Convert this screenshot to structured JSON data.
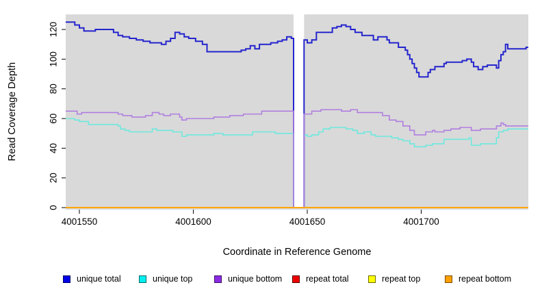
{
  "chart_data": {
    "type": "line",
    "subtype": "step-post",
    "title": "",
    "xlabel": "Coordinate in Reference Genome",
    "ylabel": "Read Coverage Depth",
    "xlim": [
      4001544,
      4001747
    ],
    "ylim": [
      0,
      130
    ],
    "x_ticks": [
      "4001550",
      "4001600",
      "4001650",
      "4001700"
    ],
    "x_tick_values": [
      4001550,
      4001600,
      4001650,
      4001700
    ],
    "y_ticks": [
      "0",
      "20",
      "40",
      "60",
      "80",
      "100",
      "120"
    ],
    "y_tick_values": [
      0,
      20,
      40,
      60,
      80,
      100,
      120
    ],
    "grid": false,
    "panel_background": "#d9d9d9",
    "outer_background": "#ffffff",
    "no_data_gap": {
      "x_start": 4001644,
      "x_end": 4001648.6,
      "fill": "#ffffff"
    },
    "legend_position": "bottom",
    "series": [
      {
        "name": "unique total",
        "line_color": "#2424ce",
        "swatch_fill": "#0000e8",
        "swatch_border": "#000066",
        "line_width": 2,
        "points": [
          [
            4001544,
            125
          ],
          [
            4001548,
            123
          ],
          [
            4001550,
            121
          ],
          [
            4001552,
            119
          ],
          [
            4001557,
            120
          ],
          [
            4001565,
            118
          ],
          [
            4001567,
            116
          ],
          [
            4001569,
            115
          ],
          [
            4001572,
            114
          ],
          [
            4001575,
            113
          ],
          [
            4001578,
            112
          ],
          [
            4001581,
            111
          ],
          [
            4001586,
            110
          ],
          [
            4001588,
            112
          ],
          [
            4001590,
            114
          ],
          [
            4001592,
            118
          ],
          [
            4001594,
            117
          ],
          [
            4001596,
            115
          ],
          [
            4001598,
            114
          ],
          [
            4001601,
            112
          ],
          [
            4001604,
            110
          ],
          [
            4001606,
            105
          ],
          [
            4001621,
            106
          ],
          [
            4001623,
            107
          ],
          [
            4001625,
            109
          ],
          [
            4001627,
            107
          ],
          [
            4001629,
            110
          ],
          [
            4001634,
            111
          ],
          [
            4001637,
            112
          ],
          [
            4001639,
            113
          ],
          [
            4001641,
            115
          ],
          [
            4001643,
            114
          ],
          [
            4001644,
            0
          ],
          [
            4001648.6,
            113
          ],
          [
            4001650,
            111
          ],
          [
            4001652,
            113
          ],
          [
            4001654,
            118
          ],
          [
            4001661,
            121
          ],
          [
            4001663,
            122
          ],
          [
            4001665,
            123
          ],
          [
            4001667,
            122
          ],
          [
            4001669,
            120
          ],
          [
            4001671,
            118
          ],
          [
            4001674,
            116
          ],
          [
            4001679,
            113
          ],
          [
            4001681,
            115
          ],
          [
            4001685,
            113
          ],
          [
            4001686,
            111
          ],
          [
            4001690,
            108
          ],
          [
            4001693,
            106
          ],
          [
            4001694,
            103
          ],
          [
            4001695,
            100
          ],
          [
            4001696,
            97
          ],
          [
            4001697,
            94
          ],
          [
            4001698,
            91
          ],
          [
            4001699,
            88
          ],
          [
            4001703,
            91
          ],
          [
            4001704,
            93
          ],
          [
            4001706,
            95
          ],
          [
            4001710,
            97
          ],
          [
            4001711,
            98
          ],
          [
            4001718,
            99
          ],
          [
            4001720,
            100
          ],
          [
            4001722,
            98
          ],
          [
            4001723,
            95
          ],
          [
            4001725,
            93
          ],
          [
            4001727,
            95
          ],
          [
            4001729,
            96
          ],
          [
            4001733,
            94
          ],
          [
            4001734,
            99
          ],
          [
            4001735,
            103
          ],
          [
            4001736,
            105
          ],
          [
            4001737,
            110
          ],
          [
            4001738,
            107
          ],
          [
            4001744,
            107
          ],
          [
            4001746,
            108
          ],
          [
            4001747,
            108
          ]
        ]
      },
      {
        "name": "unique top",
        "line_color": "#6ce9de",
        "swatch_fill": "#00efef",
        "swatch_border": "#006a6a",
        "line_width": 1.6,
        "points": [
          [
            4001544,
            60
          ],
          [
            4001548,
            59
          ],
          [
            4001550,
            58
          ],
          [
            4001554,
            56
          ],
          [
            4001567,
            55
          ],
          [
            4001568,
            53
          ],
          [
            4001570,
            52
          ],
          [
            4001572,
            51
          ],
          [
            4001582,
            53
          ],
          [
            4001584,
            52
          ],
          [
            4001591,
            51
          ],
          [
            4001595,
            48
          ],
          [
            4001597,
            49
          ],
          [
            4001609,
            50
          ],
          [
            4001613,
            49
          ],
          [
            4001626,
            51
          ],
          [
            4001636,
            50
          ],
          [
            4001644,
            0
          ],
          [
            4001648.6,
            49
          ],
          [
            4001650,
            48
          ],
          [
            4001652,
            49
          ],
          [
            4001655,
            51
          ],
          [
            4001657,
            53
          ],
          [
            4001660,
            54
          ],
          [
            4001667,
            53
          ],
          [
            4001670,
            52
          ],
          [
            4001672,
            50
          ],
          [
            4001675,
            51
          ],
          [
            4001678,
            49
          ],
          [
            4001680,
            48
          ],
          [
            4001687,
            47
          ],
          [
            4001690,
            46
          ],
          [
            4001692,
            45
          ],
          [
            4001695,
            43
          ],
          [
            4001697,
            41
          ],
          [
            4001702,
            42
          ],
          [
            4001705,
            43
          ],
          [
            4001710,
            46
          ],
          [
            4001721,
            47
          ],
          [
            4001722,
            42
          ],
          [
            4001726,
            43
          ],
          [
            4001733,
            47
          ],
          [
            4001734,
            51
          ],
          [
            4001736,
            52
          ],
          [
            4001738,
            53
          ],
          [
            4001747,
            53
          ]
        ]
      },
      {
        "name": "unique bottom",
        "line_color": "#b07ee0",
        "swatch_fill": "#8b2be2",
        "swatch_border": "#3d1166",
        "line_width": 1.6,
        "points": [
          [
            4001544,
            65
          ],
          [
            4001549,
            63
          ],
          [
            4001551,
            64
          ],
          [
            4001567,
            63
          ],
          [
            4001569,
            62
          ],
          [
            4001573,
            61
          ],
          [
            4001579,
            62
          ],
          [
            4001582,
            64
          ],
          [
            4001585,
            63
          ],
          [
            4001587,
            62
          ],
          [
            4001590,
            63
          ],
          [
            4001594,
            61
          ],
          [
            4001595,
            59
          ],
          [
            4001597,
            60
          ],
          [
            4001609,
            61
          ],
          [
            4001616,
            62
          ],
          [
            4001622,
            63
          ],
          [
            4001630,
            65
          ],
          [
            4001644,
            0
          ],
          [
            4001648.6,
            63
          ],
          [
            4001652,
            65
          ],
          [
            4001656,
            66
          ],
          [
            4001665,
            65
          ],
          [
            4001669,
            66
          ],
          [
            4001672,
            64
          ],
          [
            4001683,
            62
          ],
          [
            4001686,
            59
          ],
          [
            4001689,
            58
          ],
          [
            4001692,
            55
          ],
          [
            4001695,
            52
          ],
          [
            4001697,
            49
          ],
          [
            4001702,
            51
          ],
          [
            4001705,
            52
          ],
          [
            4001706,
            51
          ],
          [
            4001710,
            52
          ],
          [
            4001713,
            53
          ],
          [
            4001717,
            54
          ],
          [
            4001722,
            52
          ],
          [
            4001726,
            53
          ],
          [
            4001733,
            55
          ],
          [
            4001735,
            57
          ],
          [
            4001736,
            56
          ],
          [
            4001737,
            55
          ],
          [
            4001747,
            55
          ]
        ]
      },
      {
        "name": "repeat total",
        "line_color": "#dd0000",
        "swatch_fill": "#ee0000",
        "swatch_border": "#550000",
        "line_width": 1.6,
        "points": [
          [
            4001544,
            0
          ],
          [
            4001747,
            0
          ]
        ]
      },
      {
        "name": "repeat top",
        "line_color": "#f2f200",
        "swatch_fill": "#ffff00",
        "swatch_border": "#6a6a00",
        "line_width": 1.6,
        "points": [
          [
            4001544,
            0
          ],
          [
            4001747,
            0
          ]
        ]
      },
      {
        "name": "repeat bottom",
        "line_color": "#ffa500",
        "swatch_fill": "#ffa000",
        "swatch_border": "#7a4c00",
        "line_width": 2,
        "points": [
          [
            4001544,
            0
          ],
          [
            4001747,
            0
          ]
        ]
      }
    ]
  }
}
